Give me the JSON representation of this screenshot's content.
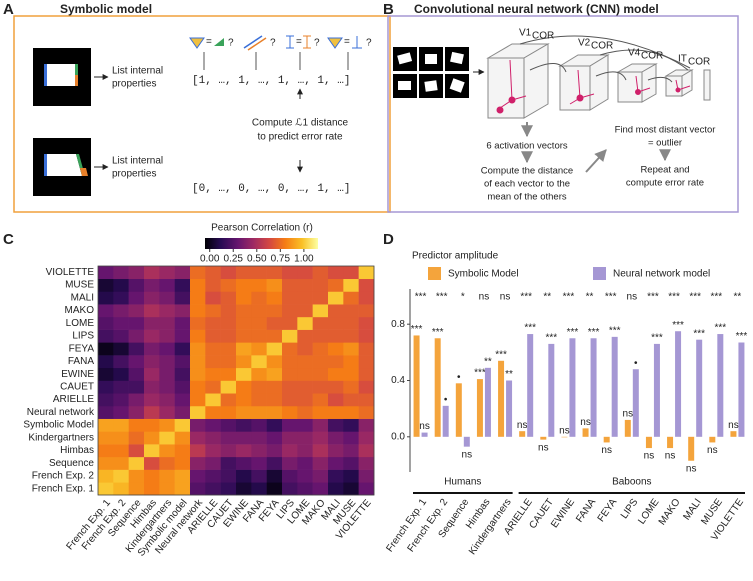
{
  "panel_labels": [
    "A",
    "B",
    "C",
    "D"
  ],
  "panel_a": {
    "title": "Symbolic model",
    "list_text": [
      "List internal",
      "properties"
    ],
    "queries": [
      "?",
      "?",
      "?",
      "?"
    ],
    "vector_1": "[1, …, 1, …, 1, …, 1, …]",
    "vector_2": "[0, …, 0, …, 0, …, 1, …]",
    "compute": [
      "Compute ℒ1 distance",
      "to predict error rate"
    ]
  },
  "panel_b": {
    "title": "Convolutional neural network (CNN) model",
    "layers": [
      {
        "name": "V1",
        "sub": "COR"
      },
      {
        "name": "V2",
        "sub": "COR"
      },
      {
        "name": "V4",
        "sub": "COR"
      },
      {
        "name": "IT",
        "sub": "COR"
      }
    ],
    "activation": "6 activation vectors",
    "distance": [
      "Compute the distance",
      "of each vector to the",
      "mean of the others"
    ],
    "outlier": [
      "Find most distant vector",
      "= outlier"
    ],
    "repeat": [
      "Repeat and",
      "compute error rate"
    ]
  },
  "chart_data": [
    {
      "type": "heatmap",
      "colorbar_title": "Pearson Correlation (r)",
      "colormap": "inferno",
      "clim": [
        -0.05,
        1.15
      ],
      "cticks": [
        {
          "value": 0,
          "label": "0.00"
        },
        {
          "value": 0.25,
          "label": "0.25"
        },
        {
          "value": 0.5,
          "label": "0.50"
        },
        {
          "value": 0.75,
          "label": "0.75"
        },
        {
          "value": 1,
          "label": "1.00"
        }
      ],
      "categories": [
        "French Exp. 1",
        "French Exp. 2",
        "Sequence",
        "Himbas",
        "Kindergartners",
        "Symbolic model",
        "Neural network",
        "ARIELLE",
        "CAUET",
        "EWINE",
        "FANA",
        "FEYA",
        "LIPS",
        "LOME",
        "MAKO",
        "MALI",
        "MUSE",
        "VIOLETTE"
      ],
      "y_categories": [
        "French Exp. 1",
        "French Exp. 2",
        "Sequence",
        "Himbas",
        "Kindergartners",
        "Symbolic Model",
        "Neural network",
        "ARIELLE",
        "CAUET",
        "EWINE",
        "FANA",
        "FEYA",
        "LIPS",
        "LOME",
        "MAKO",
        "MALI",
        "MUSE",
        "VIOLETTE"
      ],
      "values": [
        [
          1,
          0.95,
          0.85,
          0.8,
          0.85,
          0.9,
          0.25,
          0.2,
          0.15,
          0.05,
          0.1,
          0.0,
          0.2,
          0.25,
          0.3,
          0.1,
          0.05,
          0.3
        ],
        [
          0.95,
          1,
          0.85,
          0.8,
          0.85,
          0.9,
          0.3,
          0.25,
          0.2,
          0.1,
          0.2,
          0.05,
          0.25,
          0.3,
          0.35,
          0.15,
          0.1,
          0.35
        ],
        [
          0.85,
          0.85,
          1,
          0.65,
          0.75,
          0.8,
          0.4,
          0.35,
          0.2,
          0.25,
          0.3,
          0.2,
          0.35,
          0.3,
          0.4,
          0.3,
          0.25,
          0.4
        ],
        [
          0.8,
          0.8,
          0.65,
          1,
          0.85,
          0.8,
          0.55,
          0.45,
          0.4,
          0.45,
          0.4,
          0.35,
          0.45,
          0.4,
          0.5,
          0.4,
          0.35,
          0.5
        ],
        [
          0.85,
          0.85,
          0.75,
          0.85,
          1,
          0.85,
          0.45,
          0.4,
          0.35,
          0.35,
          0.35,
          0.3,
          0.4,
          0.4,
          0.45,
          0.35,
          0.3,
          0.45
        ],
        [
          0.9,
          0.9,
          0.8,
          0.8,
          0.85,
          1,
          0.35,
          0.3,
          0.25,
          0.2,
          0.25,
          0.15,
          0.3,
          0.3,
          0.4,
          0.2,
          0.15,
          0.4
        ],
        [
          0.25,
          0.3,
          0.4,
          0.55,
          0.45,
          0.35,
          1,
          0.8,
          0.8,
          0.85,
          0.85,
          0.85,
          0.8,
          0.75,
          0.8,
          0.8,
          0.8,
          0.75
        ],
        [
          0.2,
          0.25,
          0.35,
          0.45,
          0.4,
          0.3,
          0.8,
          1,
          0.75,
          0.8,
          0.75,
          0.75,
          0.7,
          0.7,
          0.75,
          0.65,
          0.7,
          0.7
        ],
        [
          0.15,
          0.2,
          0.2,
          0.4,
          0.35,
          0.25,
          0.8,
          0.75,
          1,
          0.8,
          0.75,
          0.75,
          0.7,
          0.7,
          0.7,
          0.7,
          0.75,
          0.65
        ],
        [
          0.05,
          0.1,
          0.25,
          0.45,
          0.35,
          0.2,
          0.85,
          0.8,
          0.8,
          1,
          0.85,
          0.9,
          0.75,
          0.75,
          0.75,
          0.8,
          0.8,
          0.7
        ],
        [
          0.1,
          0.2,
          0.3,
          0.4,
          0.35,
          0.25,
          0.85,
          0.75,
          0.75,
          0.85,
          1,
          0.85,
          0.75,
          0.75,
          0.75,
          0.75,
          0.8,
          0.7
        ],
        [
          0.0,
          0.05,
          0.2,
          0.35,
          0.3,
          0.15,
          0.85,
          0.75,
          0.75,
          0.9,
          0.85,
          1,
          0.75,
          0.7,
          0.75,
          0.8,
          0.85,
          0.7
        ],
        [
          0.2,
          0.25,
          0.35,
          0.45,
          0.4,
          0.3,
          0.8,
          0.7,
          0.7,
          0.75,
          0.75,
          0.75,
          1,
          0.7,
          0.7,
          0.7,
          0.7,
          0.65
        ],
        [
          0.25,
          0.3,
          0.3,
          0.4,
          0.4,
          0.3,
          0.75,
          0.7,
          0.7,
          0.75,
          0.75,
          0.7,
          0.7,
          1,
          0.7,
          0.7,
          0.7,
          0.65
        ],
        [
          0.3,
          0.35,
          0.4,
          0.5,
          0.45,
          0.4,
          0.8,
          0.75,
          0.7,
          0.75,
          0.75,
          0.75,
          0.7,
          0.7,
          1,
          0.7,
          0.7,
          0.7
        ],
        [
          0.1,
          0.15,
          0.3,
          0.4,
          0.35,
          0.2,
          0.8,
          0.65,
          0.7,
          0.8,
          0.75,
          0.8,
          0.7,
          0.7,
          0.7,
          1,
          0.75,
          0.65
        ],
        [
          0.05,
          0.1,
          0.25,
          0.35,
          0.3,
          0.15,
          0.8,
          0.7,
          0.75,
          0.8,
          0.8,
          0.85,
          0.7,
          0.7,
          0.7,
          0.75,
          1,
          0.65
        ],
        [
          0.3,
          0.35,
          0.4,
          0.5,
          0.45,
          0.4,
          0.75,
          0.7,
          0.65,
          0.7,
          0.7,
          0.7,
          0.65,
          0.65,
          0.7,
          0.65,
          0.65,
          1
        ]
      ]
    },
    {
      "type": "bar",
      "title": "Predictor amplitude",
      "categories": [
        "French Exp. 1",
        "French Exp. 2",
        "Sequence",
        "Himbas",
        "Kindergartners",
        "ARIELLE",
        "CAUET",
        "EWINE",
        "FANA",
        "FEYA",
        "LIPS",
        "LOME",
        "MAKO",
        "MALI",
        "MUSE",
        "VIOLETTE"
      ],
      "groups": [
        {
          "name": "Humans",
          "members": [
            "French Exp. 1",
            "French Exp. 2",
            "Sequence",
            "Himbas",
            "Kindergartners"
          ]
        },
        {
          "name": "Baboons",
          "members": [
            "ARIELLE",
            "CAUET",
            "EWINE",
            "FANA",
            "FEYA",
            "LIPS",
            "LOME",
            "MAKO",
            "MALI",
            "MUSE",
            "VIOLETTE"
          ]
        }
      ],
      "difference_labels": [
        "***",
        "***",
        "*",
        "ns",
        "ns",
        "***",
        "**",
        "***",
        "**",
        "***",
        "ns",
        "***",
        "***",
        "***",
        "***",
        "**"
      ],
      "series": [
        {
          "name": "Symbolic Model",
          "color": "#f4a43c",
          "values": [
            0.72,
            0.7,
            0.38,
            0.41,
            0.54,
            0.04,
            -0.02,
            0.0,
            0.06,
            -0.04,
            0.12,
            -0.08,
            -0.08,
            -0.17,
            -0.04,
            0.04
          ],
          "annotations": [
            "***",
            "***",
            "•",
            "***",
            "***",
            "ns",
            "ns",
            "ns",
            "ns",
            "ns",
            "ns",
            "ns",
            "ns",
            "ns",
            "ns",
            "ns"
          ]
        },
        {
          "name": "Neural network model",
          "color": "#a597d4",
          "values": [
            0.03,
            0.22,
            -0.07,
            0.49,
            0.4,
            0.73,
            0.66,
            0.7,
            0.7,
            0.71,
            0.48,
            0.66,
            0.75,
            0.69,
            0.73,
            0.67
          ],
          "annotations": [
            "ns",
            "•",
            "ns",
            "**",
            "**",
            "***",
            "***",
            "***",
            "***",
            "***",
            "•",
            "***",
            "***",
            "***",
            "***",
            "***"
          ]
        }
      ],
      "ylim": [
        -0.25,
        1.05
      ],
      "yticks": [
        {
          "value": 0,
          "label": "0.0"
        },
        0.4,
        0.8
      ]
    }
  ]
}
